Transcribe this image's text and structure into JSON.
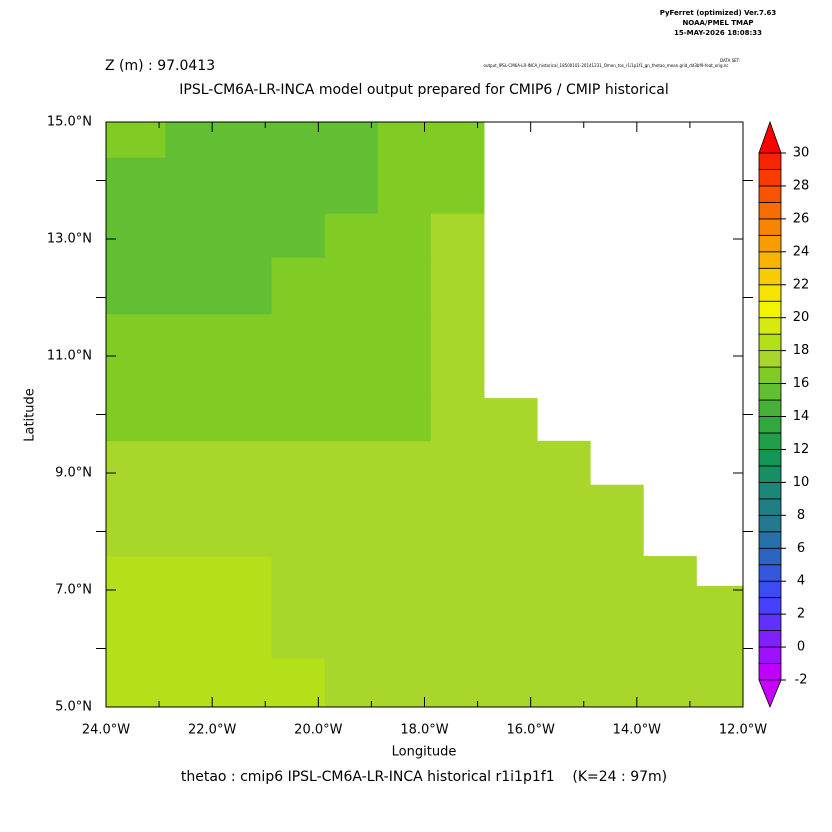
{
  "chart_data": {
    "type": "heatmap",
    "title": "IPSL-CM6A-LR-INCA model output prepared for CMIP6 / CMIP historical",
    "subtitle": "Z (m) : 97.0413",
    "program": "PyFerret (optimized) Ver.7.63",
    "lab": "NOAA/PMEL TMAP",
    "timestamp": "15-MAY-2026 18:08:33",
    "dataset_label": "DATA SET:",
    "dataset": "output_IPSL-CM6A-LR-INCA_historical_18500101-20141231_Omon_tos_r1i1p1f1_gn_thetao_mean.grid_dd3bf9-feat_orig.nc",
    "footer": "thetao : cmip6 IPSL-CM6A-LR-INCA historical r1i1p1f1    (K=24 : 97m)",
    "x_label": "Longitude",
    "y_label": "Latitude",
    "x_edges": [
      -24,
      -22.88,
      -21.88,
      -20.88,
      -19.88,
      -18.88,
      -17.88,
      -16.88,
      -15.88,
      -14.88,
      -13.88,
      -12.88,
      -12
    ],
    "y_edges": [
      5.0,
      5.84,
      7.07,
      7.58,
      8.8,
      9.55,
      10.28,
      11.72,
      12.69,
      13.44,
      14.4,
      15.0
    ],
    "values": [
      [
        18.5,
        18.5,
        18.5,
        18.5,
        17.5,
        17.5,
        17.5,
        17.5,
        17.5,
        17.5,
        17.5,
        17.5
      ],
      [
        18.5,
        18.5,
        18.5,
        17.5,
        17.5,
        17.5,
        17.5,
        17.5,
        17.5,
        17.5,
        17.5,
        17.5
      ],
      [
        18.5,
        18.5,
        18.5,
        17.5,
        17.5,
        17.5,
        17.5,
        17.5,
        17.5,
        17.5,
        17.5,
        null
      ],
      [
        17.5,
        17.5,
        17.5,
        17.5,
        17.5,
        17.5,
        17.5,
        17.5,
        17.5,
        17.5,
        null,
        null
      ],
      [
        17.5,
        17.5,
        17.5,
        17.5,
        17.5,
        17.5,
        17.5,
        17.5,
        17.5,
        null,
        null,
        null
      ],
      [
        16.5,
        16.5,
        16.5,
        16.5,
        16.5,
        16.5,
        17.5,
        17.5,
        null,
        null,
        null,
        null
      ],
      [
        16.5,
        16.5,
        16.5,
        16.5,
        16.5,
        16.5,
        17.5,
        null,
        null,
        null,
        null,
        null
      ],
      [
        15.5,
        15.5,
        15.5,
        16.5,
        16.5,
        16.5,
        17.5,
        null,
        null,
        null,
        null,
        null
      ],
      [
        15.5,
        15.5,
        15.5,
        15.5,
        16.5,
        16.5,
        17.5,
        null,
        null,
        null,
        null,
        null
      ],
      [
        15.5,
        15.5,
        15.5,
        15.5,
        15.5,
        16.5,
        16.5,
        null,
        null,
        null,
        null,
        null
      ],
      [
        16.5,
        15.5,
        15.5,
        15.5,
        15.5,
        16.5,
        16.5,
        null,
        null,
        null,
        null,
        null
      ]
    ],
    "xlim": [
      -24,
      -12
    ],
    "ylim": [
      5,
      15
    ],
    "xticks": [
      {
        "value": -24,
        "label": "24.0°W"
      },
      {
        "value": -22,
        "label": "22.0°W"
      },
      {
        "value": -20,
        "label": "20.0°W"
      },
      {
        "value": -18,
        "label": "18.0°W"
      },
      {
        "value": -16,
        "label": "16.0°W"
      },
      {
        "value": -14,
        "label": "14.0°W"
      },
      {
        "value": -12,
        "label": "12.0°W"
      }
    ],
    "yticks": [
      {
        "value": 5,
        "label": "5.0°N"
      },
      {
        "value": 7,
        "label": "7.0°N"
      },
      {
        "value": 9,
        "label": "9.0°N"
      },
      {
        "value": 11,
        "label": "11.0°N"
      },
      {
        "value": 13,
        "label": "13.0°N"
      },
      {
        "value": 15,
        "label": "15.0°N"
      }
    ],
    "xminorticks": [
      -23,
      -21,
      -19,
      -17,
      -15,
      -13
    ],
    "yminorticks": [
      6,
      8,
      10,
      12,
      14
    ],
    "colorbar": {
      "levels": [
        -2,
        -1,
        0,
        1,
        2,
        3,
        4,
        5,
        6,
        7,
        8,
        9,
        10,
        11,
        12,
        13,
        14,
        15,
        16,
        17,
        18,
        19,
        20,
        21,
        22,
        23,
        24,
        25,
        26,
        27,
        28,
        29,
        30
      ],
      "colors": [
        "#c800ff",
        "#c000ff",
        "#a010ff",
        "#8020ff",
        "#6030ff",
        "#4840ff",
        "#3c4cf0",
        "#3458dc",
        "#2c64c4",
        "#2870a8",
        "#24788f",
        "#1f7f84",
        "#1a8878",
        "#168f64",
        "#129852",
        "#1fa048",
        "#30a83e",
        "#48b038",
        "#62be33",
        "#80cc25",
        "#a8d62a",
        "#b4e01a",
        "#d4ea10",
        "#f0f400",
        "#f8e400",
        "#f8cc00",
        "#f8b400",
        "#f89c00",
        "#f88400",
        "#f86c00",
        "#f85400",
        "#f83c00",
        "#f82400",
        "#ff0000"
      ],
      "ticks": [
        -2,
        0,
        2,
        4,
        6,
        8,
        10,
        12,
        14,
        16,
        18,
        20,
        22,
        24,
        26,
        28,
        30
      ]
    }
  }
}
